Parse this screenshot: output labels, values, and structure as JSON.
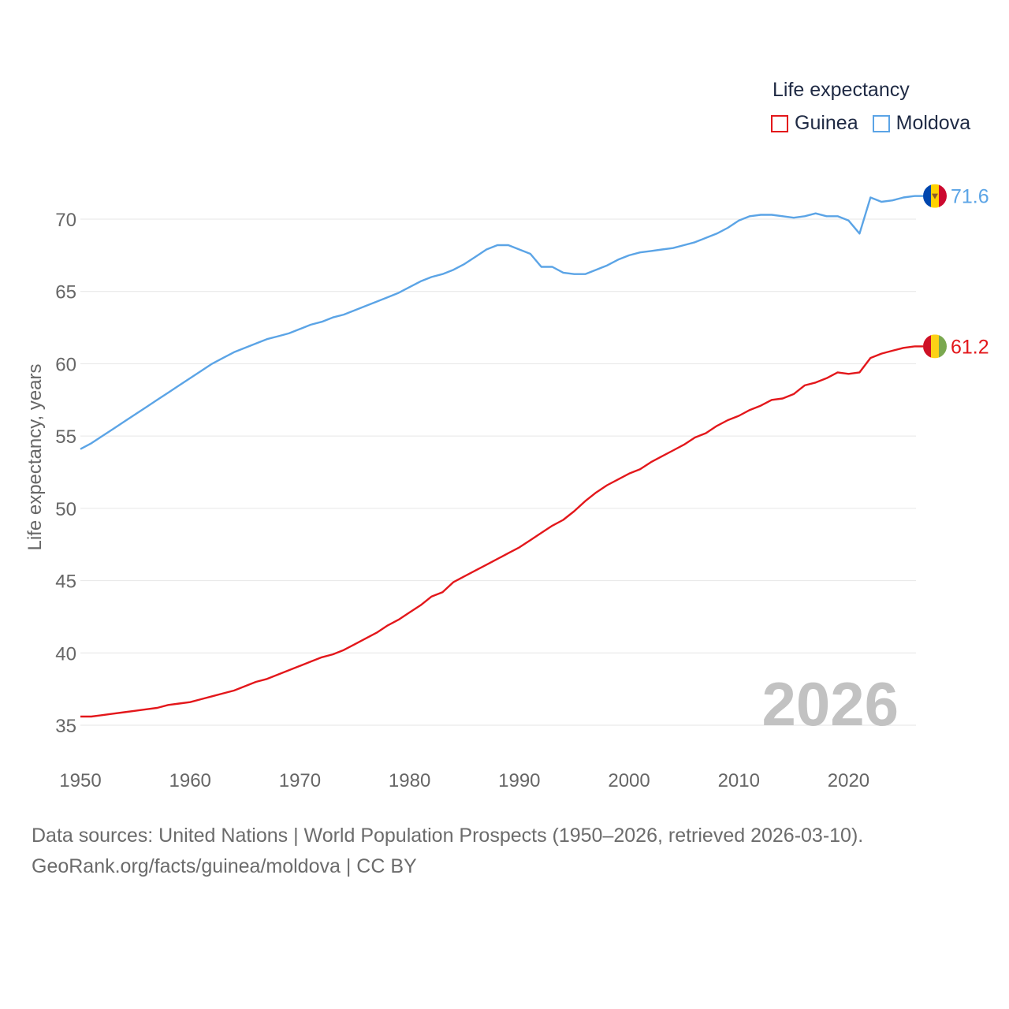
{
  "chart_data": {
    "type": "line",
    "legend_title": "Life expectancy",
    "ylabel": "Life expectancy, years",
    "xlabel": "",
    "xlim": [
      1950,
      2026
    ],
    "ylim": [
      33,
      73
    ],
    "x_ticks": [
      "1950",
      "1960",
      "1970",
      "1980",
      "1990",
      "2000",
      "2010",
      "2020"
    ],
    "y_ticks": [
      "35",
      "40",
      "45",
      "50",
      "55",
      "60",
      "65",
      "70"
    ],
    "year_label": "2026",
    "series": [
      {
        "name": "Guinea",
        "color": "#e3171b",
        "end_label": "61.2",
        "flag": "guinea-flag",
        "points": [
          [
            1950,
            35.6
          ],
          [
            1951,
            35.6
          ],
          [
            1952,
            35.7
          ],
          [
            1953,
            35.8
          ],
          [
            1954,
            35.9
          ],
          [
            1955,
            36.0
          ],
          [
            1956,
            36.1
          ],
          [
            1957,
            36.2
          ],
          [
            1958,
            36.4
          ],
          [
            1959,
            36.5
          ],
          [
            1960,
            36.6
          ],
          [
            1961,
            36.8
          ],
          [
            1962,
            37.0
          ],
          [
            1963,
            37.2
          ],
          [
            1964,
            37.4
          ],
          [
            1965,
            37.7
          ],
          [
            1966,
            38.0
          ],
          [
            1967,
            38.2
          ],
          [
            1968,
            38.5
          ],
          [
            1969,
            38.8
          ],
          [
            1970,
            39.1
          ],
          [
            1971,
            39.4
          ],
          [
            1972,
            39.7
          ],
          [
            1973,
            39.9
          ],
          [
            1974,
            40.2
          ],
          [
            1975,
            40.6
          ],
          [
            1976,
            41.0
          ],
          [
            1977,
            41.4
          ],
          [
            1978,
            41.9
          ],
          [
            1979,
            42.3
          ],
          [
            1980,
            42.8
          ],
          [
            1981,
            43.3
          ],
          [
            1982,
            43.9
          ],
          [
            1983,
            44.2
          ],
          [
            1984,
            44.9
          ],
          [
            1985,
            45.3
          ],
          [
            1986,
            45.7
          ],
          [
            1987,
            46.1
          ],
          [
            1988,
            46.5
          ],
          [
            1989,
            46.9
          ],
          [
            1990,
            47.3
          ],
          [
            1991,
            47.8
          ],
          [
            1992,
            48.3
          ],
          [
            1993,
            48.8
          ],
          [
            1994,
            49.2
          ],
          [
            1995,
            49.8
          ],
          [
            1996,
            50.5
          ],
          [
            1997,
            51.1
          ],
          [
            1998,
            51.6
          ],
          [
            1999,
            52.0
          ],
          [
            2000,
            52.4
          ],
          [
            2001,
            52.7
          ],
          [
            2002,
            53.2
          ],
          [
            2003,
            53.6
          ],
          [
            2004,
            54.0
          ],
          [
            2005,
            54.4
          ],
          [
            2006,
            54.9
          ],
          [
            2007,
            55.2
          ],
          [
            2008,
            55.7
          ],
          [
            2009,
            56.1
          ],
          [
            2010,
            56.4
          ],
          [
            2011,
            56.8
          ],
          [
            2012,
            57.1
          ],
          [
            2013,
            57.5
          ],
          [
            2014,
            57.6
          ],
          [
            2015,
            57.9
          ],
          [
            2016,
            58.5
          ],
          [
            2017,
            58.7
          ],
          [
            2018,
            59.0
          ],
          [
            2019,
            59.4
          ],
          [
            2020,
            59.3
          ],
          [
            2021,
            59.4
          ],
          [
            2022,
            60.4
          ],
          [
            2023,
            60.7
          ],
          [
            2024,
            60.9
          ],
          [
            2025,
            61.1
          ],
          [
            2026,
            61.2
          ]
        ]
      },
      {
        "name": "Moldova",
        "color": "#5ba4e6",
        "end_label": "71.6",
        "flag": "moldova-flag",
        "points": [
          [
            1950,
            54.1
          ],
          [
            1951,
            54.5
          ],
          [
            1952,
            55.0
          ],
          [
            1953,
            55.5
          ],
          [
            1954,
            56.0
          ],
          [
            1955,
            56.5
          ],
          [
            1956,
            57.0
          ],
          [
            1957,
            57.5
          ],
          [
            1958,
            58.0
          ],
          [
            1959,
            58.5
          ],
          [
            1960,
            59.0
          ],
          [
            1961,
            59.5
          ],
          [
            1962,
            60.0
          ],
          [
            1963,
            60.4
          ],
          [
            1964,
            60.8
          ],
          [
            1965,
            61.1
          ],
          [
            1966,
            61.4
          ],
          [
            1967,
            61.7
          ],
          [
            1968,
            61.9
          ],
          [
            1969,
            62.1
          ],
          [
            1970,
            62.4
          ],
          [
            1971,
            62.7
          ],
          [
            1972,
            62.9
          ],
          [
            1973,
            63.2
          ],
          [
            1974,
            63.4
          ],
          [
            1975,
            63.7
          ],
          [
            1976,
            64.0
          ],
          [
            1977,
            64.3
          ],
          [
            1978,
            64.6
          ],
          [
            1979,
            64.9
          ],
          [
            1980,
            65.3
          ],
          [
            1981,
            65.7
          ],
          [
            1982,
            66.0
          ],
          [
            1983,
            66.2
          ],
          [
            1984,
            66.5
          ],
          [
            1985,
            66.9
          ],
          [
            1986,
            67.4
          ],
          [
            1987,
            67.9
          ],
          [
            1988,
            68.2
          ],
          [
            1989,
            68.2
          ],
          [
            1990,
            67.9
          ],
          [
            1991,
            67.6
          ],
          [
            1992,
            66.7
          ],
          [
            1993,
            66.7
          ],
          [
            1994,
            66.3
          ],
          [
            1995,
            66.2
          ],
          [
            1996,
            66.2
          ],
          [
            1997,
            66.5
          ],
          [
            1998,
            66.8
          ],
          [
            1999,
            67.2
          ],
          [
            2000,
            67.5
          ],
          [
            2001,
            67.7
          ],
          [
            2002,
            67.8
          ],
          [
            2003,
            67.9
          ],
          [
            2004,
            68.0
          ],
          [
            2005,
            68.2
          ],
          [
            2006,
            68.4
          ],
          [
            2007,
            68.7
          ],
          [
            2008,
            69.0
          ],
          [
            2009,
            69.4
          ],
          [
            2010,
            69.9
          ],
          [
            2011,
            70.2
          ],
          [
            2012,
            70.3
          ],
          [
            2013,
            70.3
          ],
          [
            2014,
            70.2
          ],
          [
            2015,
            70.1
          ],
          [
            2016,
            70.2
          ],
          [
            2017,
            70.4
          ],
          [
            2018,
            70.2
          ],
          [
            2019,
            70.2
          ],
          [
            2020,
            69.9
          ],
          [
            2021,
            69.0
          ],
          [
            2022,
            71.5
          ],
          [
            2023,
            71.2
          ],
          [
            2024,
            71.3
          ],
          [
            2025,
            71.5
          ],
          [
            2026,
            71.6
          ]
        ]
      }
    ]
  },
  "footer": {
    "source_line1": "Data sources: United Nations | World Population Prospects (1950–2026, retrieved 2026-03-10).",
    "source_line2": "GeoRank.org/facts/guinea/moldova | CC BY"
  }
}
